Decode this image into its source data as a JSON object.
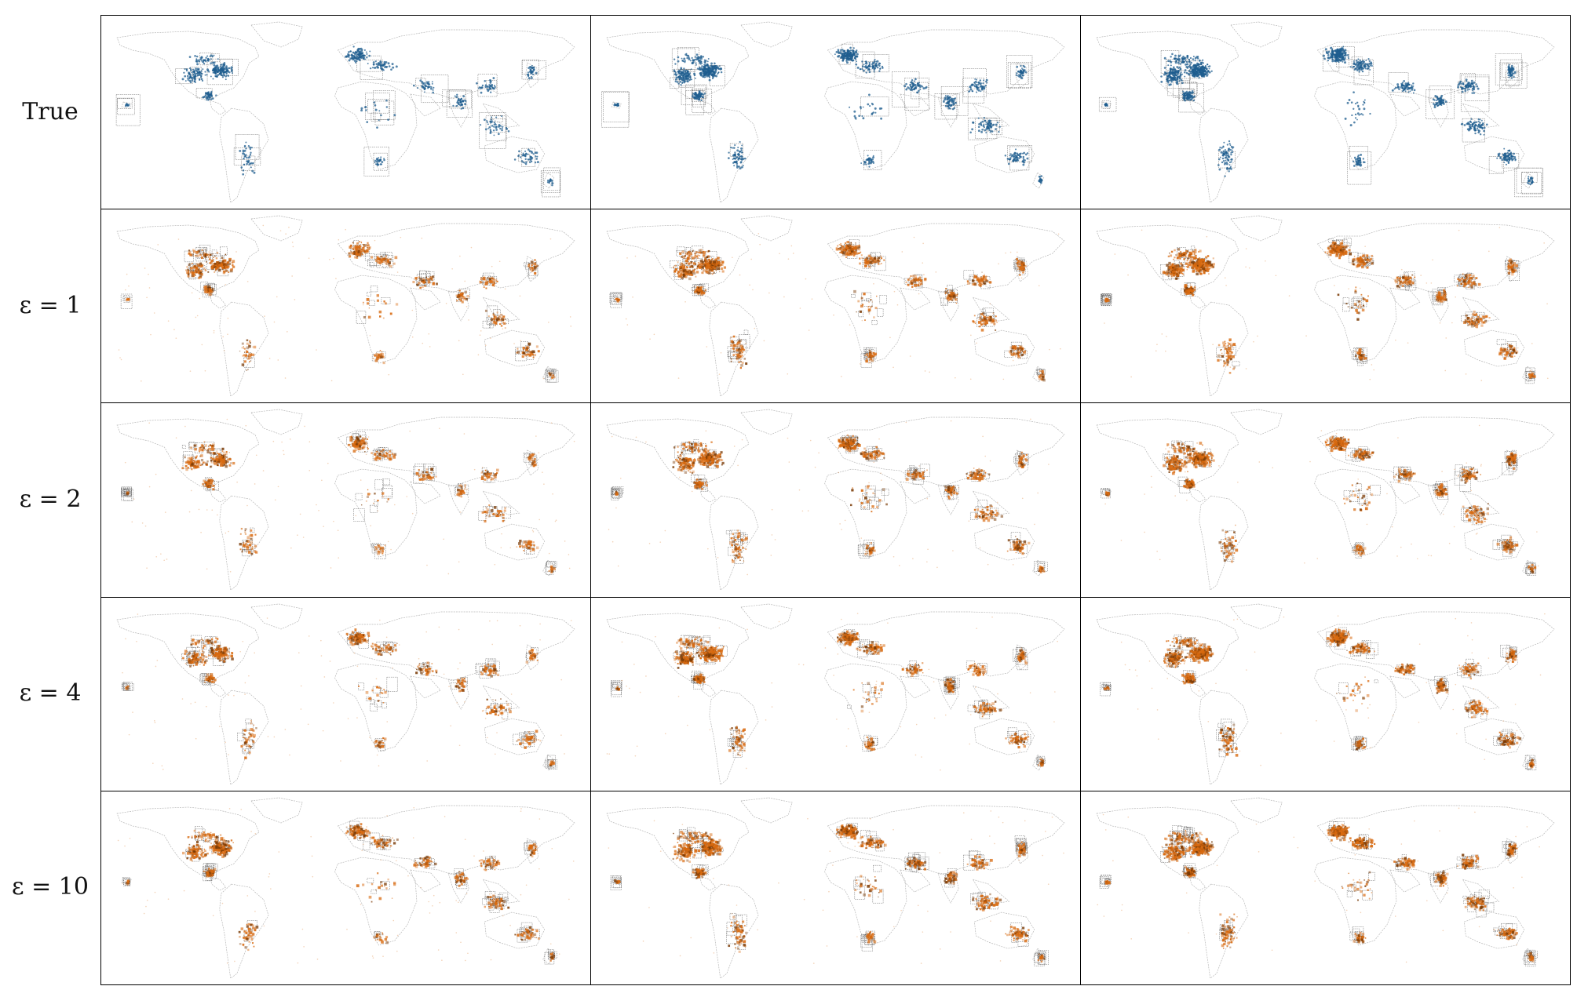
{
  "figure": {
    "rows": [
      {
        "label": "True",
        "kind": "true",
        "density": [
          0.55,
          0.8,
          0.95
        ]
      },
      {
        "label": "ε = 1",
        "kind": "private",
        "density": [
          0.5,
          0.75,
          0.85
        ]
      },
      {
        "label": "ε = 2",
        "kind": "private",
        "density": [
          0.5,
          0.75,
          0.85
        ]
      },
      {
        "label": "ε = 4",
        "kind": "private",
        "density": [
          0.55,
          0.8,
          0.9
        ]
      },
      {
        "label": "ε = 10",
        "kind": "private",
        "density": [
          0.6,
          0.85,
          0.95
        ]
      }
    ],
    "columns": 3,
    "colors": {
      "true_points": "#1f5d8f",
      "private_points": "#d86a10",
      "private_points_dark": "#7a3a05",
      "map_outline": "#b8b8b8",
      "grid_cell": "#5a5a5a",
      "panel_border": "#000000"
    }
  }
}
